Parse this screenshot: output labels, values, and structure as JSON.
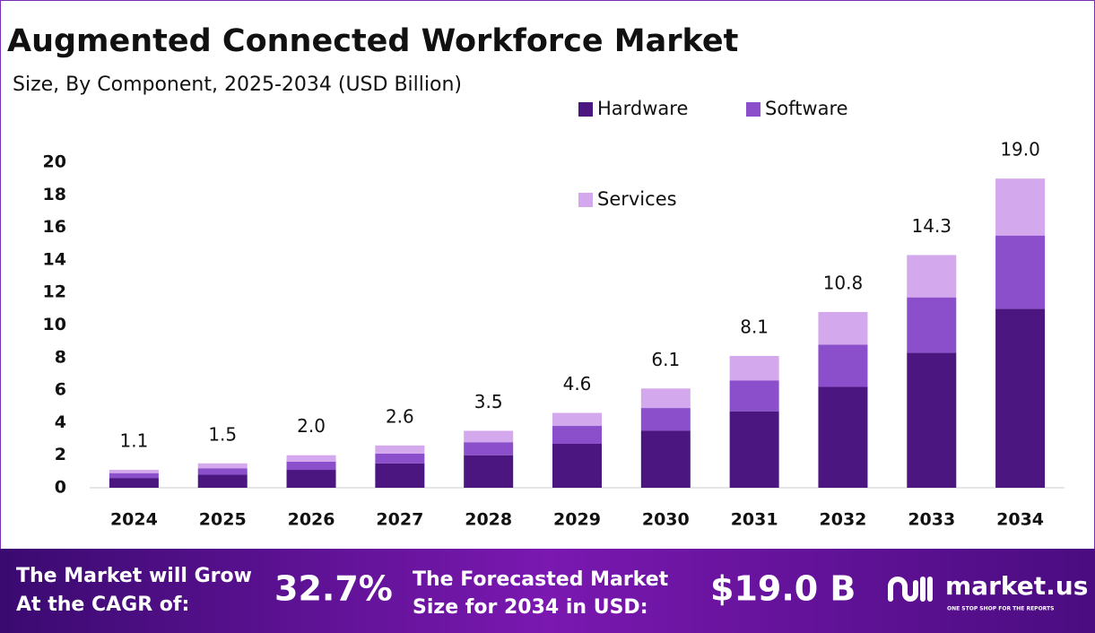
{
  "chart_data": {
    "type": "stacked-bar",
    "title": "Augmented Connected Workforce Market",
    "subtitle": "Size, By Component, 2025-2034 (USD Billion)",
    "categories": [
      "2024",
      "2025",
      "2026",
      "2027",
      "2028",
      "2029",
      "2030",
      "2031",
      "2032",
      "2033",
      "2034"
    ],
    "series": [
      {
        "name": "Hardware",
        "color": "#4b1680",
        "values": [
          0.6,
          0.8,
          1.1,
          1.5,
          2.0,
          2.7,
          3.5,
          4.7,
          6.2,
          8.3,
          11.0
        ]
      },
      {
        "name": "Software",
        "color": "#8b4fcc",
        "values": [
          0.3,
          0.4,
          0.5,
          0.6,
          0.8,
          1.1,
          1.4,
          1.9,
          2.6,
          3.4,
          4.5
        ]
      },
      {
        "name": "Services",
        "color": "#d4a8ec",
        "values": [
          0.2,
          0.3,
          0.4,
          0.5,
          0.7,
          0.8,
          1.2,
          1.5,
          2.0,
          2.6,
          3.5
        ]
      }
    ],
    "total_labels": [
      "1.1",
      "1.5",
      "2.0",
      "2.6",
      "3.5",
      "4.6",
      "6.1",
      "8.1",
      "10.8",
      "14.3",
      "19.0"
    ],
    "ylim": [
      0,
      20
    ],
    "yticks": [
      0,
      2,
      4,
      6,
      8,
      10,
      12,
      14,
      16,
      18,
      20
    ],
    "grid": false
  },
  "footer": {
    "cagr_label": [
      "The Market will Grow",
      "At the CAGR of:"
    ],
    "cagr_value": "32.7%",
    "forecast_label": [
      "The Forecasted Market",
      "Size for 2034 in USD:"
    ],
    "forecast_value": "$19.0 B",
    "brand": "market.us",
    "tagline": "ONE STOP SHOP FOR THE REPORTS"
  }
}
